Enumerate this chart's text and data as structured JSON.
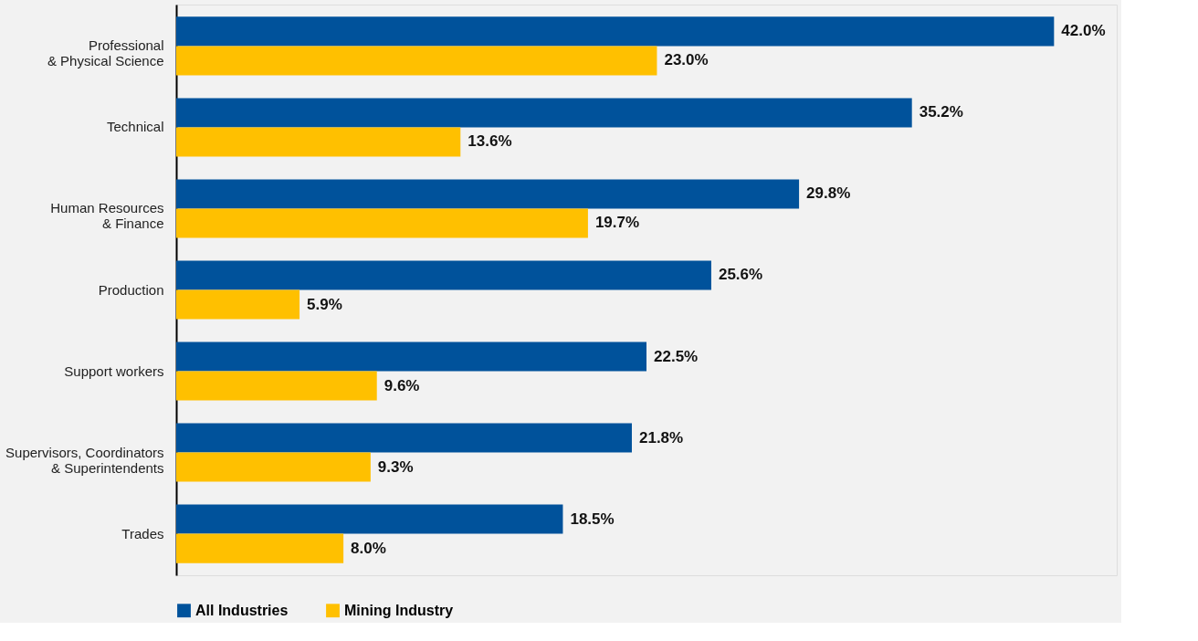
{
  "chart_data": {
    "type": "bar",
    "orientation": "horizontal",
    "categories": [
      "Professional\n& Physical Science",
      "Technical",
      "Human Resources\n& Finance",
      "Production",
      "Support workers",
      "Supervisors, Coordinators\n& Superintendents",
      "Trades"
    ],
    "series": [
      {
        "name": "All Industries",
        "color": "#00529b",
        "values": [
          42.0,
          35.2,
          29.8,
          25.6,
          22.5,
          21.8,
          18.5
        ],
        "value_labels": [
          "42.0%",
          "35.2%",
          "29.8%",
          "25.6%",
          "22.5%",
          "21.8%",
          "18.5%"
        ]
      },
      {
        "name": "Mining Industry",
        "color": "#ffc000",
        "values": [
          23.0,
          13.6,
          19.7,
          5.9,
          9.6,
          9.3,
          8.0
        ],
        "value_labels": [
          "23.0%",
          "13.6%",
          "19.7%",
          "5.9%",
          "9.6%",
          "9.3%",
          "8.0%"
        ]
      }
    ],
    "xlim": [
      0,
      45
    ],
    "tick_labels": "y",
    "grid": false,
    "legend": "bottom"
  }
}
